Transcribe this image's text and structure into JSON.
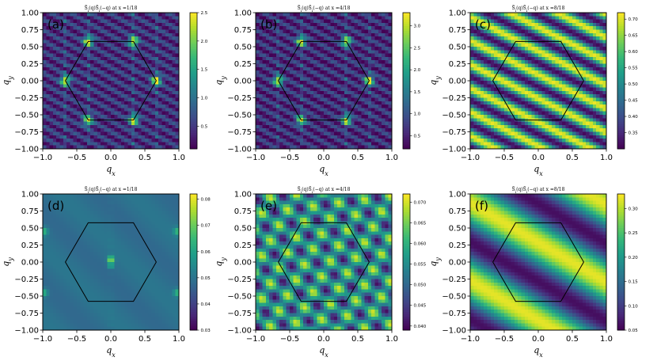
{
  "chart_data": [
    {
      "type": "heatmap",
      "panel_label": "(a)",
      "title": "S_i(q)S_i(-q) at x = 1/18",
      "title_parts": {
        "pre": "S̃",
        "mid": "(q)S̃",
        "sub": "i",
        "post": "(−q) at x =1/18"
      },
      "xlabel": "q_x",
      "ylabel": "q_y",
      "xlim": [
        -1.0,
        1.0
      ],
      "ylim": [
        -1.0,
        1.0
      ],
      "xticks": [
        "−1.0",
        "−0.5",
        "0.0",
        "0.5",
        "1.0"
      ],
      "yticks": [
        "1.00",
        "0.75",
        "0.50",
        "0.25",
        "0.00",
        "−0.25",
        "−0.50",
        "−0.75",
        "−1.00"
      ],
      "colorbar": {
        "range": [
          0.1,
          2.5
        ],
        "ticks": [
          "2.5",
          "2.0",
          "1.5",
          "1.0",
          "0.5"
        ],
        "tick_values": [
          2.5,
          2.0,
          1.5,
          1.0,
          0.5
        ]
      },
      "pattern": {
        "base": 0.45,
        "amp": 0.35,
        "kx": 22,
        "ky": 40,
        "kx2": 0,
        "ky2": 0,
        "amp2": 0,
        "peaks": [
          [
            0.667,
            0,
            2.4,
            0.05
          ],
          [
            -0.667,
            0,
            2.4,
            0.05
          ],
          [
            0.333,
            0.577,
            2.4,
            0.05
          ],
          [
            -0.333,
            0.577,
            2.4,
            0.05
          ],
          [
            0.333,
            -0.577,
            2.4,
            0.05
          ],
          [
            -0.333,
            -0.577,
            2.4,
            0.05
          ]
        ],
        "vlines": [
          -0.667,
          -0.333,
          0.333,
          0.667
        ],
        "vline_amp": 0.5
      }
    },
    {
      "type": "heatmap",
      "panel_label": "(b)",
      "title": "S_i(q)S_i(-q) at x = 4/18",
      "title_parts": {
        "pre": "S̃",
        "mid": "(q)S̃",
        "sub": "i",
        "post": "(−q) at x =4/18"
      },
      "xlabel": "q_x",
      "ylabel": "q_y",
      "xlim": [
        -1.0,
        1.0
      ],
      "ylim": [
        -1.0,
        1.0
      ],
      "xticks": [
        "−1.0",
        "−0.5",
        "0.0",
        "0.5",
        "1.0"
      ],
      "yticks": [
        "1.00",
        "0.75",
        "0.50",
        "0.25",
        "0.00",
        "−0.25",
        "−0.50",
        "−0.75",
        "−1.00"
      ],
      "colorbar": {
        "range": [
          0.2,
          3.3
        ],
        "ticks": [
          "3.0",
          "2.5",
          "2.0",
          "1.5",
          "1.0",
          "0.5"
        ],
        "tick_values": [
          3.0,
          2.5,
          2.0,
          1.5,
          1.0,
          0.5
        ]
      },
      "pattern": {
        "base": 0.6,
        "amp": 0.45,
        "kx": 22,
        "ky": 40,
        "kx2": 0,
        "ky2": 0,
        "amp2": 0,
        "peaks": [
          [
            0.667,
            0,
            3.1,
            0.05
          ],
          [
            -0.667,
            0,
            3.1,
            0.05
          ],
          [
            0.333,
            0.577,
            3.1,
            0.05
          ],
          [
            -0.333,
            0.577,
            3.1,
            0.05
          ],
          [
            0.333,
            -0.577,
            3.1,
            0.05
          ],
          [
            -0.333,
            -0.577,
            3.1,
            0.05
          ]
        ],
        "vlines": [
          -0.667,
          -0.333,
          0.333,
          0.667
        ],
        "vline_amp": 0.6
      }
    },
    {
      "type": "heatmap",
      "panel_label": "(c)",
      "title": "S_i(q)S_i(-q) at x = 8/18",
      "title_parts": {
        "pre": "S̃",
        "mid": "(q)S̃",
        "sub": "i",
        "post": "(−q) at x =8/18"
      },
      "xlabel": "q_x",
      "ylabel": "q_y",
      "xlim": [
        -1.0,
        1.0
      ],
      "ylim": [
        -1.0,
        1.0
      ],
      "xticks": [
        "−1.0",
        "−0.5",
        "0.0",
        "0.5",
        "1.0"
      ],
      "yticks": [
        "1.00",
        "0.75",
        "0.50",
        "0.25",
        "0.00",
        "−0.25",
        "−0.50",
        "−0.75",
        "−1.00"
      ],
      "colorbar": {
        "range": [
          0.3,
          0.72
        ],
        "ticks": [
          "0.70",
          "0.65",
          "0.60",
          "0.55",
          "0.50",
          "0.45",
          "0.40",
          "0.35"
        ],
        "tick_values": [
          0.7,
          0.65,
          0.6,
          0.55,
          0.5,
          0.45,
          0.4,
          0.35
        ]
      },
      "pattern": {
        "base": 0.51,
        "amp": 0.2,
        "kx": 9,
        "ky": 18,
        "kx2": 0,
        "ky2": 0,
        "amp2": 0,
        "peaks": [],
        "vlines": [],
        "vline_amp": 0
      }
    },
    {
      "type": "heatmap",
      "panel_label": "(d)",
      "title": "S_i(q)S_i(-q) at x = 1/18",
      "title_parts": {
        "pre": "S̃",
        "mid": "(q)S̃",
        "sub": "i",
        "post": "(−q) at x =1/18"
      },
      "xlabel": "q_x",
      "ylabel": "q_y",
      "xlim": [
        -1.0,
        1.0
      ],
      "ylim": [
        -1.0,
        1.0
      ],
      "xticks": [
        "−1.0",
        "−0.5",
        "0.0",
        "0.5",
        "1.0"
      ],
      "yticks": [
        "1.00",
        "0.75",
        "0.50",
        "0.25",
        "0.00",
        "−0.25",
        "−0.50",
        "−0.75",
        "−1.00"
      ],
      "colorbar": {
        "range": [
          0.03,
          0.082
        ],
        "ticks": [
          "0.08",
          "0.07",
          "0.06",
          "0.05",
          "0.04",
          "0.03"
        ],
        "tick_values": [
          0.08,
          0.07,
          0.06,
          0.05,
          0.04,
          0.03
        ]
      },
      "pattern": {
        "base": 0.049,
        "amp": 0.0015,
        "kx": 6,
        "ky": 6,
        "kx2": 0,
        "ky2": 0,
        "amp2": 0,
        "peaks": [
          [
            0.0,
            0.04,
            0.08,
            0.03
          ],
          [
            0.0,
            -0.05,
            0.07,
            0.025
          ],
          [
            -0.98,
            0.45,
            0.065,
            0.04
          ],
          [
            -0.98,
            -0.45,
            0.065,
            0.04
          ],
          [
            0.98,
            0.45,
            0.065,
            0.04
          ],
          [
            0.98,
            -0.45,
            0.065,
            0.04
          ]
        ],
        "vlines": [
          0.0
        ],
        "vline_amp": 0.006
      }
    },
    {
      "type": "heatmap",
      "panel_label": "(e)",
      "title": "S_i(q)S_i(-q) at x = 4/18",
      "title_parts": {
        "pre": "S̃",
        "mid": "(q)S̃",
        "sub": "i",
        "post": "(−q) at x =4/18"
      },
      "xlabel": "q_x",
      "ylabel": "q_y",
      "xlim": [
        -1.0,
        1.0
      ],
      "ylim": [
        -1.0,
        1.0
      ],
      "xticks": [
        "−1.0",
        "−0.5",
        "0.0",
        "0.5",
        "1.0"
      ],
      "yticks": [
        "1.00",
        "0.75",
        "0.50",
        "0.25",
        "0.00",
        "−0.25",
        "−0.50",
        "−0.75",
        "−1.00"
      ],
      "colorbar": {
        "range": [
          0.039,
          0.072
        ],
        "ticks": [
          "0.070",
          "0.065",
          "0.060",
          "0.055",
          "0.050",
          "0.045",
          "0.040"
        ],
        "tick_values": [
          0.07,
          0.065,
          0.06,
          0.055,
          0.05,
          0.045,
          0.04
        ]
      },
      "pattern": {
        "base": 0.055,
        "amp": 0.008,
        "kx": 14,
        "ky": 20,
        "kx2": 18,
        "ky2": -10,
        "amp2": 0.007,
        "peaks": [],
        "vlines": [],
        "vline_amp": 0
      }
    },
    {
      "type": "heatmap",
      "panel_label": "(f)",
      "title": "S_i(q)S_i(-q) at x = 8/18",
      "title_parts": {
        "pre": "S̃",
        "mid": "(q)S̃",
        "sub": "i",
        "post": "(−q) at x =8/18"
      },
      "xlabel": "q_x",
      "ylabel": "q_y",
      "xlim": [
        -1.0,
        1.0
      ],
      "ylim": [
        -1.0,
        1.0
      ],
      "xticks": [
        "−1.0",
        "−0.5",
        "0.0",
        "0.5",
        "1.0"
      ],
      "yticks": [
        "1.00",
        "0.75",
        "0.50",
        "0.25",
        "0.00",
        "−0.25",
        "−0.50",
        "−0.75",
        "−1.00"
      ],
      "colorbar": {
        "range": [
          0.05,
          0.33
        ],
        "ticks": [
          "0.30",
          "0.25",
          "0.20",
          "0.15",
          "0.10",
          "0.05"
        ],
        "tick_values": [
          0.3,
          0.25,
          0.2,
          0.15,
          0.1,
          0.05
        ]
      },
      "pattern": {
        "base": 0.19,
        "amp": 0.13,
        "kx": 3.2,
        "ky": 5.5,
        "kx2": 0,
        "ky2": 0,
        "amp2": 0,
        "peaks": [],
        "vlines": [],
        "vline_amp": 0
      }
    }
  ]
}
